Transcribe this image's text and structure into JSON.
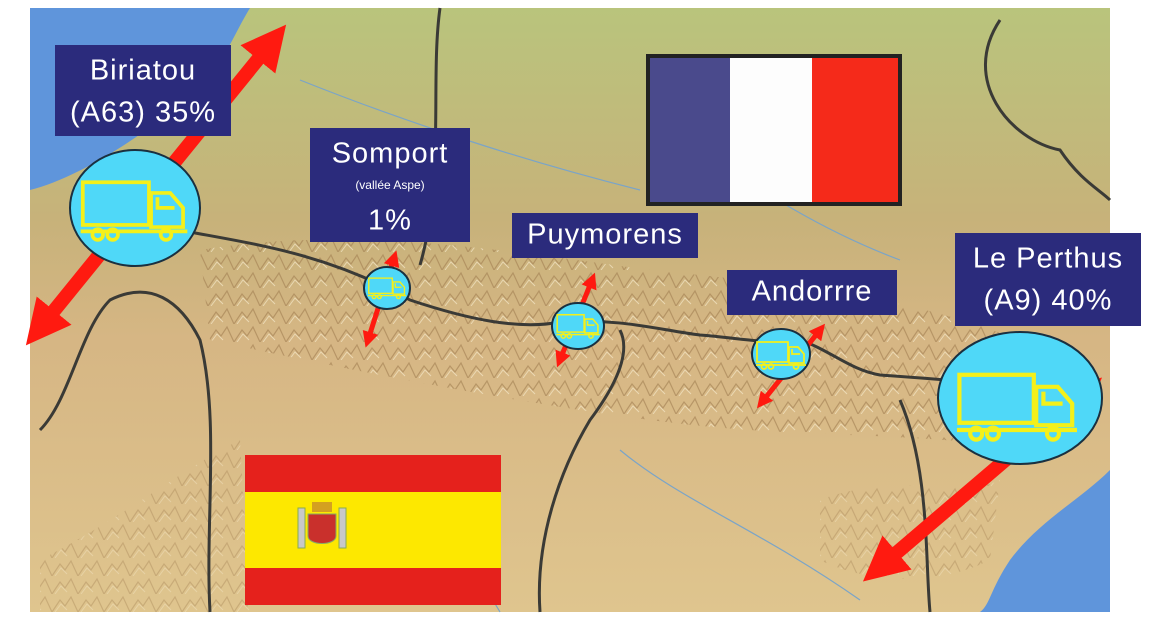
{
  "crossings": [
    {
      "name": "Biriatou",
      "detail": "(A63) 35%"
    },
    {
      "name": "Somport",
      "note": "(vallée Aspe)",
      "detail": "1%"
    },
    {
      "name": "Puymorens"
    },
    {
      "name": "Andorrre"
    },
    {
      "name": "Le Perthus",
      "detail": "(A9) 40%"
    }
  ]
}
